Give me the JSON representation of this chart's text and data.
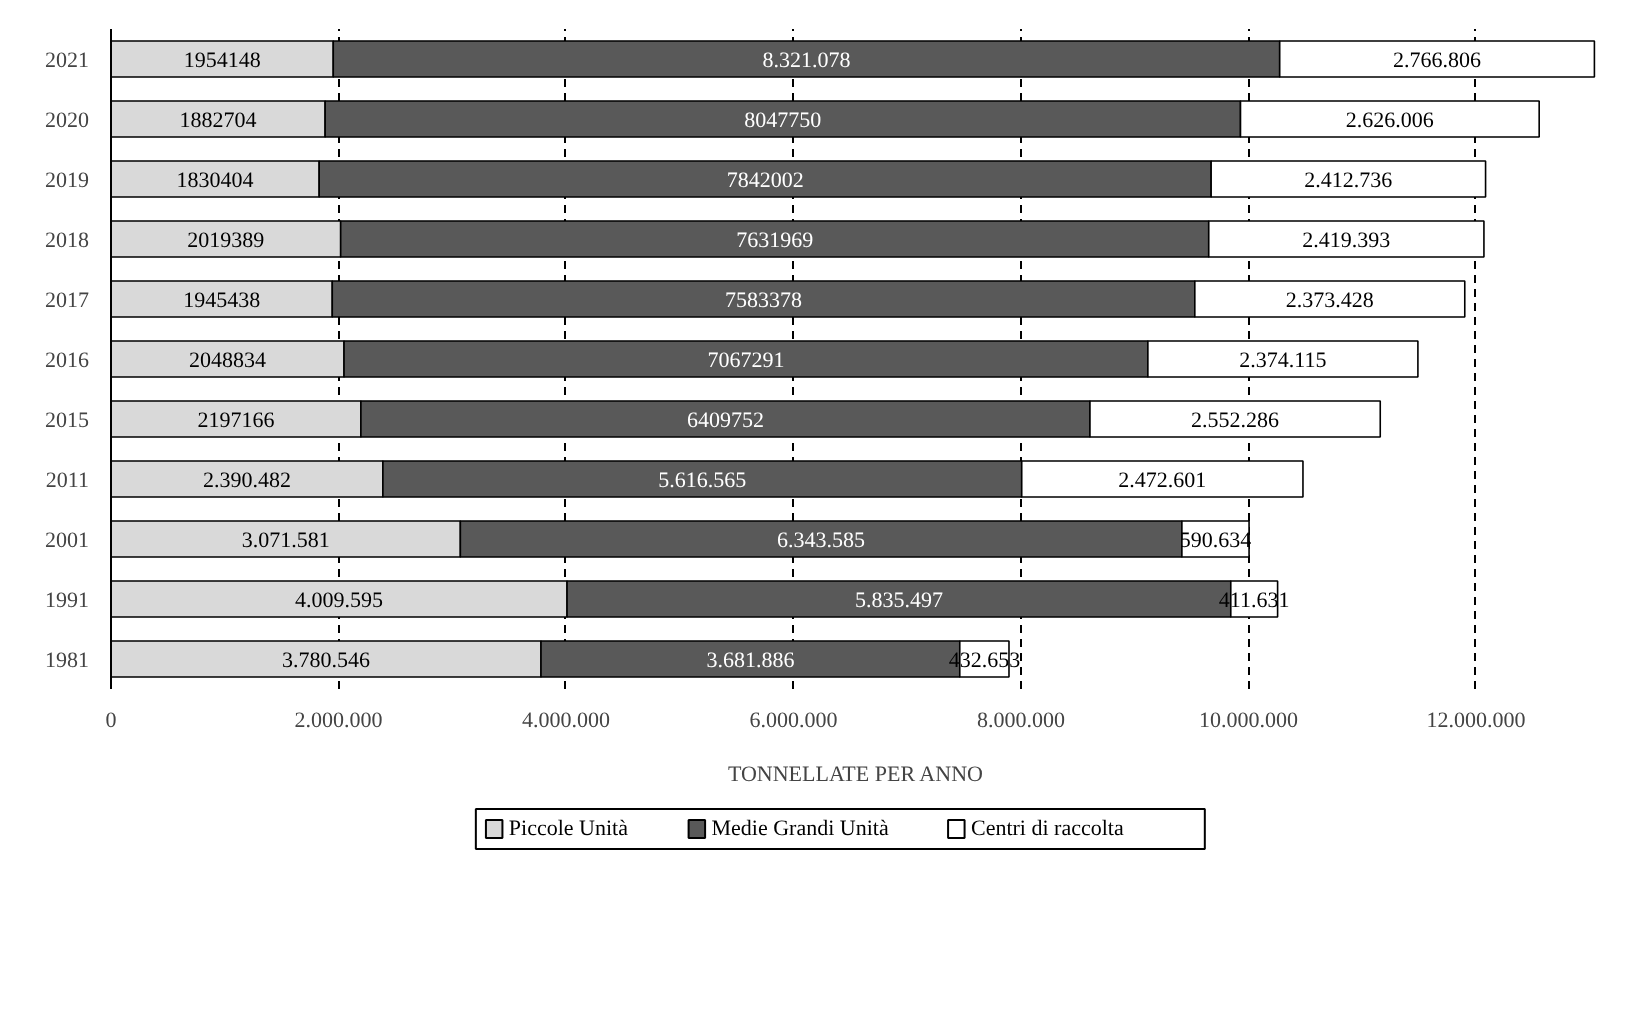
{
  "chart_data": {
    "type": "bar",
    "orientation": "horizontal",
    "stacked": true,
    "xlabel": "TONNELLATE PER ANNO",
    "categories": [
      "2021",
      "2020",
      "2019",
      "2018",
      "2017",
      "2016",
      "2015",
      "2011",
      "2001",
      "1991",
      "1981"
    ],
    "series": [
      {
        "name": "Piccole Unità",
        "color": "#d9d9d9",
        "values": [
          1954148,
          1882704,
          1830404,
          2019389,
          1945438,
          2048834,
          2197166,
          2390482,
          3071581,
          4009595,
          3780546
        ],
        "value_labels": [
          "1954148",
          "1882704",
          "1830404",
          "2019389",
          "1945438",
          "2048834",
          "2197166",
          "2.390.482",
          "3.071.581",
          "4.009.595",
          "3.780.546"
        ]
      },
      {
        "name": "Medie Grandi Unità",
        "color": "#595959",
        "values": [
          8321078,
          8047750,
          7842002,
          7631969,
          7583378,
          7067291,
          6409752,
          5616565,
          6343585,
          5835497,
          3681886
        ],
        "value_labels": [
          "8.321.078",
          "8047750",
          "7842002",
          "7631969",
          "7583378",
          "7067291",
          "6409752",
          "5.616.565",
          "6.343.585",
          "5.835.497",
          "3.681.886"
        ]
      },
      {
        "name": "Centri di raccolta",
        "color": "#ffffff",
        "values": [
          2766806,
          2626006,
          2412736,
          2419393,
          2373428,
          2374115,
          2552286,
          2472601,
          590634,
          411631,
          432653
        ],
        "value_labels": [
          "2.766.806",
          "2.626.006",
          "2.412.736",
          "2.419.393",
          "2.373.428",
          "2.374.115",
          "2.552.286",
          "2.472.601",
          "590.634",
          "411.631",
          "432.653"
        ]
      }
    ],
    "xlim": [
      0,
      13100000
    ],
    "xticks": [
      {
        "value": 0,
        "label": "0"
      },
      {
        "value": 2000000,
        "label": "2.000.000"
      },
      {
        "value": 4000000,
        "label": "4.000.000"
      },
      {
        "value": 6000000,
        "label": "6.000.000"
      },
      {
        "value": 8000000,
        "label": "8.000.000"
      },
      {
        "value": 10000000,
        "label": "10.000.000"
      },
      {
        "value": 12000000,
        "label": "12.000.000"
      }
    ],
    "grid": "x",
    "legend": "bottom"
  }
}
